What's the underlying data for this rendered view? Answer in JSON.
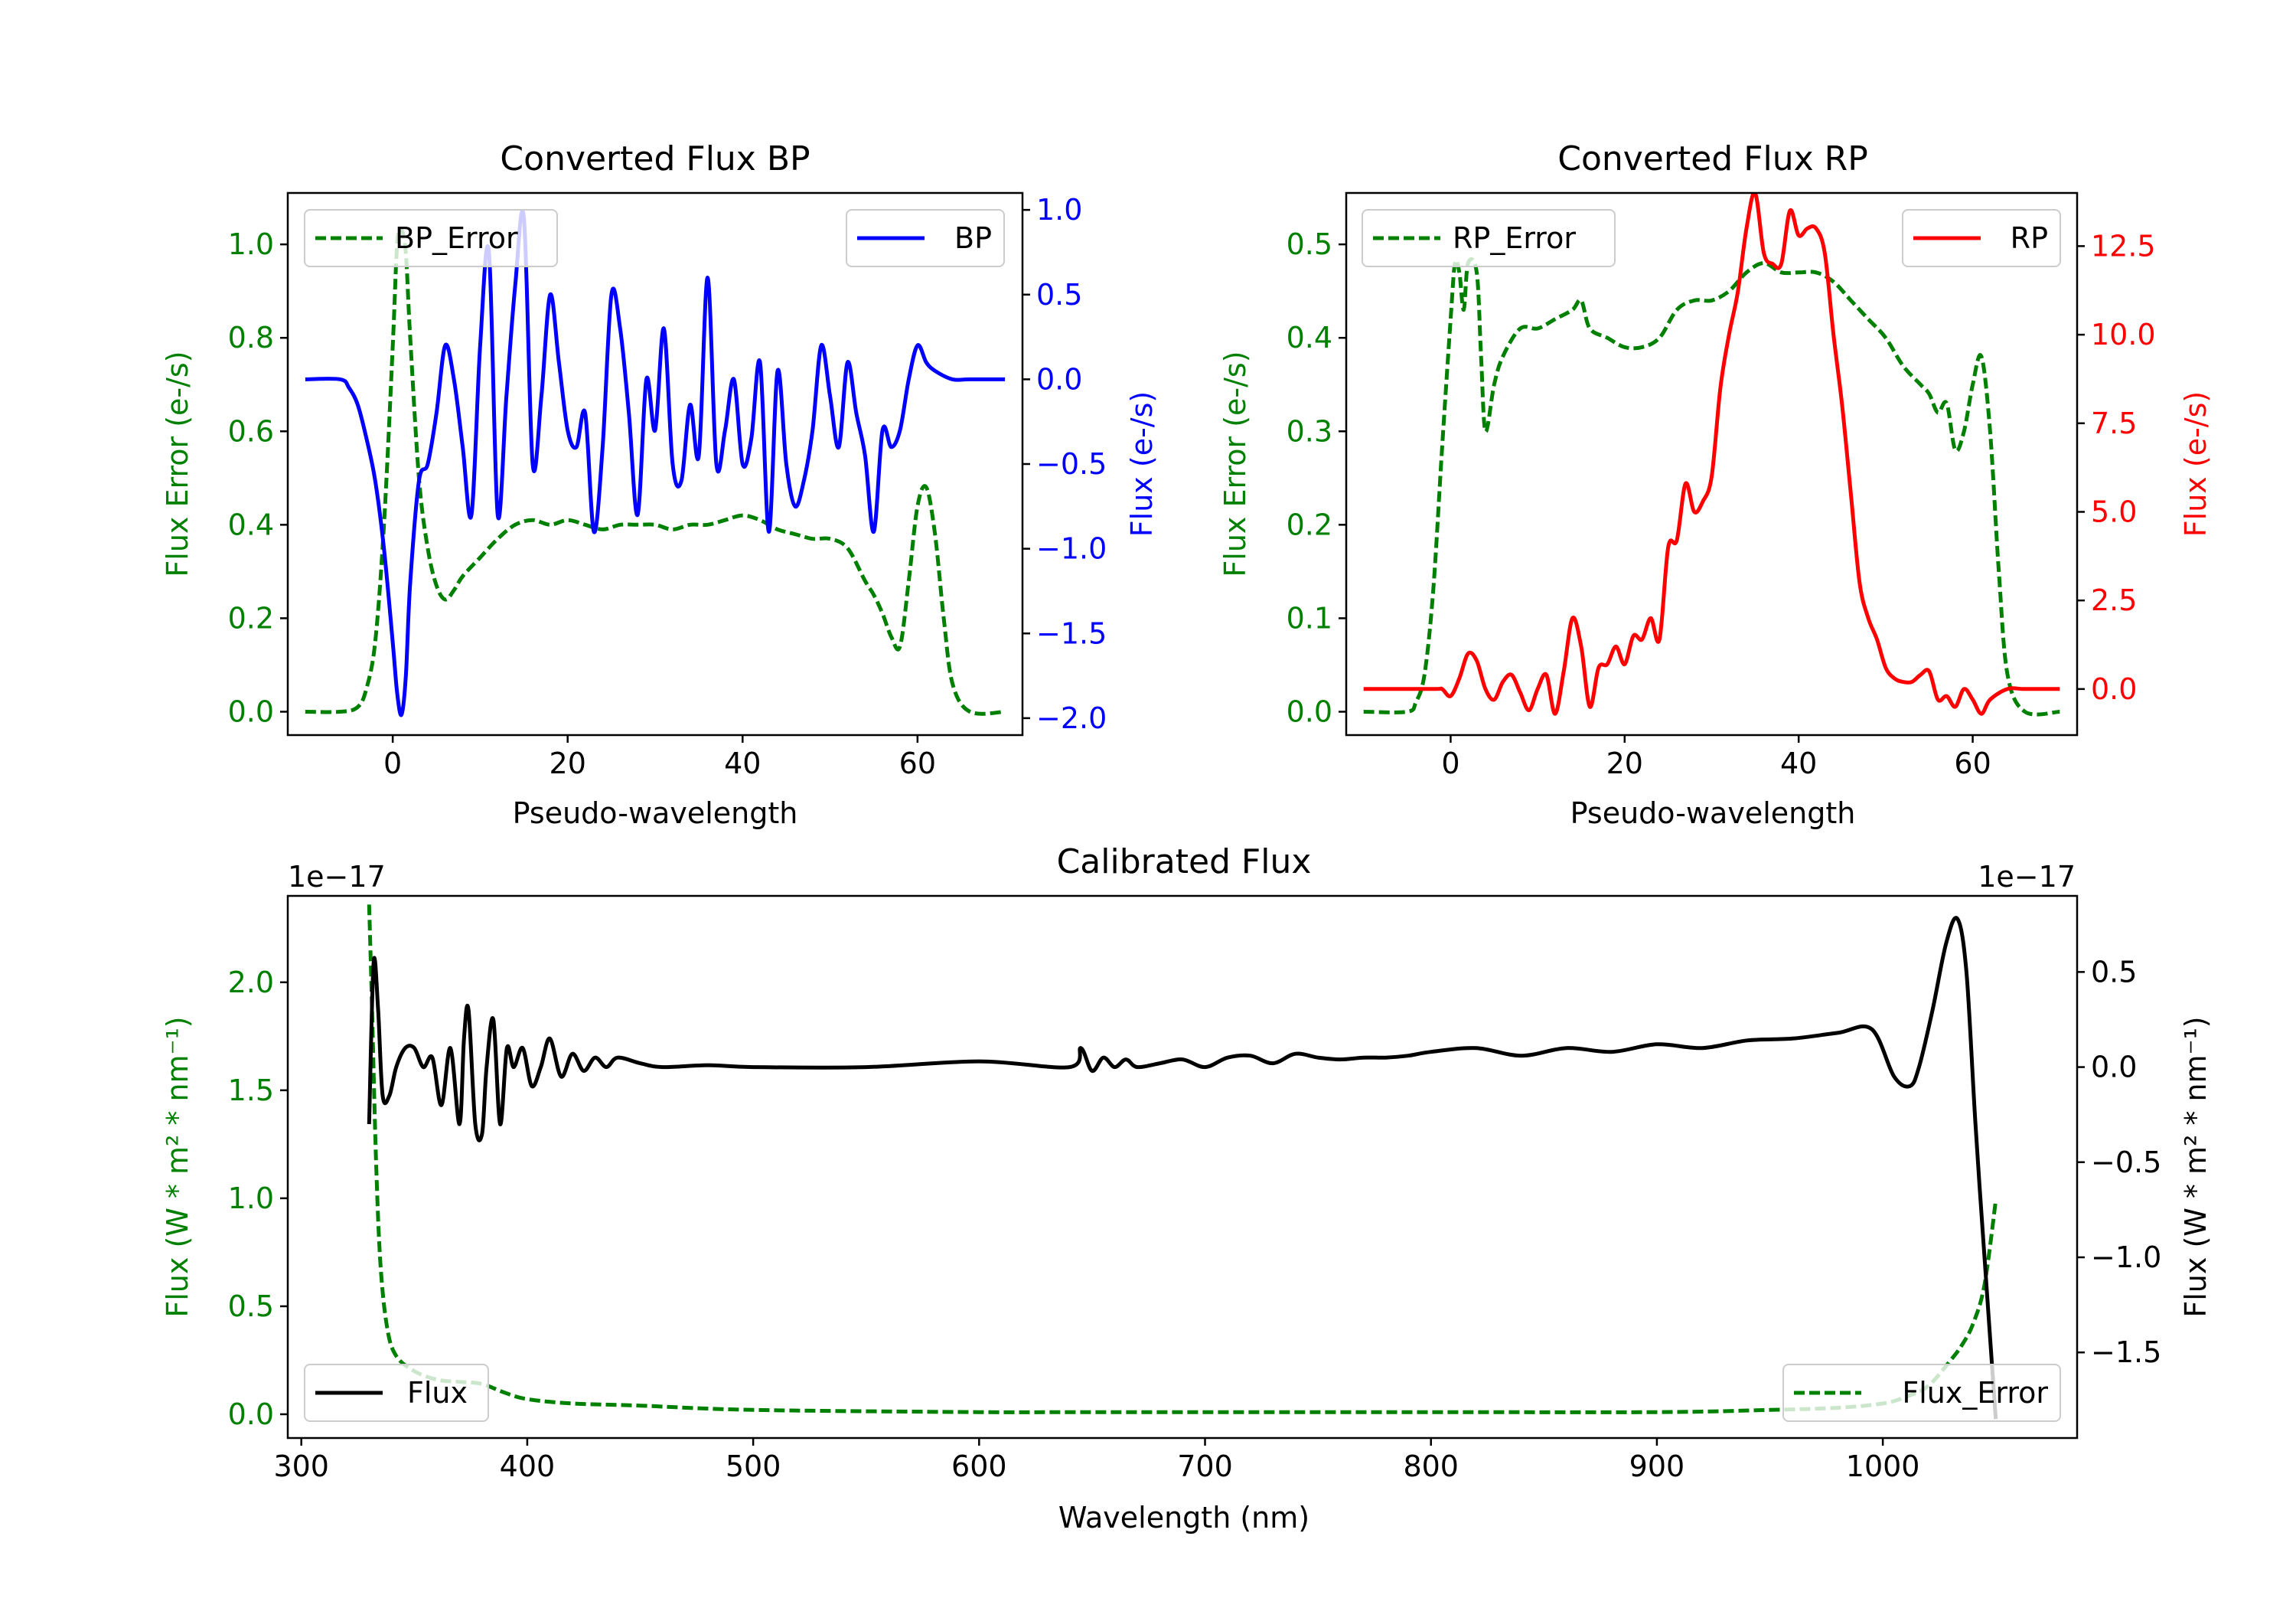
{
  "colors": {
    "green": "#008000",
    "blue": "#0000ff",
    "red": "#ff0000",
    "black": "#000000",
    "frame": "#000000"
  },
  "chart_data": [
    {
      "id": "bp",
      "type": "line",
      "title": "Converted Flux BP",
      "xlabel": "Pseudo-wavelength",
      "ylabel_left": "Flux Error (e-/s)",
      "ylabel_right": "Flux (e-/s)",
      "xlim": [
        -12,
        72
      ],
      "ylim_left": [
        -0.05,
        1.11
      ],
      "ylim_right": [
        -2.1,
        1.1
      ],
      "xticks": [
        0,
        20,
        40,
        60
      ],
      "xtick_labels": [
        "0",
        "20",
        "40",
        "60"
      ],
      "yticks_left": [
        0.0,
        0.2,
        0.4,
        0.6,
        0.8,
        1.0
      ],
      "ytick_labels_left": [
        "0.0",
        "0.2",
        "0.4",
        "0.6",
        "0.8",
        "1.0"
      ],
      "yticks_right": [
        -2.0,
        -1.5,
        -1.0,
        -0.5,
        0.0,
        0.5,
        1.0
      ],
      "ytick_labels_right": [
        "−2.0",
        "−1.5",
        "−1.0",
        "−0.5",
        "0.0",
        "0.5",
        "1.0"
      ],
      "legend_left": {
        "label": "BP_Error",
        "style": "dashed",
        "color": "green",
        "position": "upper left"
      },
      "legend_right": {
        "label": "BP",
        "style": "solid",
        "color": "blue",
        "position": "upper right"
      },
      "series": [
        {
          "name": "BP_Error",
          "axis": "left",
          "color": "green",
          "style": "dashed",
          "x": [
            -10,
            -6,
            -4,
            -3,
            -2,
            -1,
            0,
            0.5,
            1,
            1.5,
            2,
            3,
            4,
            5,
            6,
            7,
            8,
            10,
            12,
            14,
            16,
            18,
            20,
            22,
            24,
            26,
            28,
            30,
            32,
            34,
            36,
            38,
            40,
            42,
            44,
            46,
            48,
            50,
            52,
            54,
            55,
            56,
            57,
            58,
            59,
            60,
            61,
            62,
            63,
            64,
            66,
            70
          ],
          "y": [
            0,
            0,
            0.01,
            0.05,
            0.15,
            0.4,
            0.78,
            1.0,
            1.03,
            0.98,
            0.8,
            0.5,
            0.35,
            0.27,
            0.24,
            0.26,
            0.29,
            0.33,
            0.37,
            0.4,
            0.41,
            0.4,
            0.41,
            0.4,
            0.39,
            0.4,
            0.4,
            0.4,
            0.39,
            0.4,
            0.4,
            0.41,
            0.42,
            0.41,
            0.39,
            0.38,
            0.37,
            0.37,
            0.35,
            0.28,
            0.25,
            0.21,
            0.16,
            0.14,
            0.28,
            0.44,
            0.48,
            0.38,
            0.2,
            0.06,
            0.0,
            0.0
          ]
        },
        {
          "name": "BP",
          "axis": "right",
          "color": "blue",
          "style": "solid",
          "x": [
            -10,
            -6,
            -5,
            -4,
            -3,
            -2,
            -1,
            0,
            0.5,
            1,
            1.5,
            2,
            3,
            4,
            5,
            6,
            7,
            8,
            9,
            10,
            11,
            12,
            13,
            14,
            15,
            16,
            17,
            18,
            19,
            20,
            21,
            22,
            23,
            24,
            25,
            26,
            27,
            28,
            29,
            30,
            31,
            32,
            33,
            34,
            35,
            36,
            37,
            38,
            39,
            40,
            41,
            42,
            43,
            44,
            45,
            46,
            47,
            48,
            49,
            50,
            51,
            52,
            53,
            54,
            55,
            56,
            57,
            58,
            59,
            60,
            61,
            62,
            64,
            66,
            70
          ],
          "y": [
            0,
            0,
            -0.05,
            -0.15,
            -0.35,
            -0.6,
            -1.0,
            -1.55,
            -1.85,
            -1.98,
            -1.75,
            -1.2,
            -0.6,
            -0.5,
            -0.2,
            0.2,
            0.0,
            -0.4,
            -0.8,
            0.2,
            0.75,
            -0.8,
            -0.1,
            0.55,
            0.95,
            -0.5,
            -0.1,
            0.5,
            0.1,
            -0.3,
            -0.4,
            -0.2,
            -0.9,
            -0.4,
            0.5,
            0.3,
            -0.2,
            -0.8,
            0.0,
            -0.3,
            0.3,
            -0.5,
            -0.6,
            -0.15,
            -0.45,
            0.6,
            -0.5,
            -0.3,
            0.0,
            -0.5,
            -0.35,
            0.1,
            -0.9,
            0.05,
            -0.5,
            -0.75,
            -0.6,
            -0.3,
            0.2,
            -0.1,
            -0.4,
            0.1,
            -0.2,
            -0.45,
            -0.9,
            -0.3,
            -0.4,
            -0.3,
            0.0,
            0.2,
            0.1,
            0.05,
            0.0,
            0.0,
            0.0
          ]
        }
      ]
    },
    {
      "id": "rp",
      "type": "line",
      "title": "Converted Flux RP",
      "xlabel": "Pseudo-wavelength",
      "ylabel_left": "Flux Error (e-/s)",
      "ylabel_right": "Flux (e-/s)",
      "xlim": [
        -12,
        72
      ],
      "ylim_left": [
        -0.025,
        0.555
      ],
      "ylim_right": [
        -1.3,
        14.0
      ],
      "xticks": [
        0,
        20,
        40,
        60
      ],
      "xtick_labels": [
        "0",
        "20",
        "40",
        "60"
      ],
      "yticks_left": [
        0.0,
        0.1,
        0.2,
        0.3,
        0.4,
        0.5
      ],
      "ytick_labels_left": [
        "0.0",
        "0.1",
        "0.2",
        "0.3",
        "0.4",
        "0.5"
      ],
      "yticks_right": [
        0.0,
        2.5,
        5.0,
        7.5,
        10.0,
        12.5
      ],
      "ytick_labels_right": [
        "0.0",
        "2.5",
        "5.0",
        "7.5",
        "10.0",
        "12.5"
      ],
      "legend_left": {
        "label": "RP_Error",
        "style": "dashed",
        "color": "green",
        "position": "upper left"
      },
      "legend_right": {
        "label": "RP",
        "style": "solid",
        "color": "red",
        "position": "upper right"
      },
      "series": [
        {
          "name": "RP_Error",
          "axis": "left",
          "color": "green",
          "style": "dashed",
          "x": [
            -10,
            -5,
            -4,
            -3,
            -2,
            -1,
            0,
            0.5,
            1,
            1.5,
            2,
            3,
            3.5,
            4,
            5,
            6,
            8,
            10,
            12,
            14,
            15,
            16,
            18,
            20,
            22,
            24,
            26,
            28,
            30,
            32,
            34,
            36,
            38,
            40,
            42,
            44,
            46,
            48,
            50,
            52,
            54,
            55,
            56,
            57,
            58,
            59,
            60,
            61,
            62,
            63,
            64,
            66,
            70
          ],
          "y": [
            0,
            0,
            0.01,
            0.04,
            0.13,
            0.28,
            0.42,
            0.48,
            0.47,
            0.43,
            0.48,
            0.47,
            0.38,
            0.3,
            0.35,
            0.38,
            0.41,
            0.41,
            0.42,
            0.43,
            0.44,
            0.41,
            0.4,
            0.39,
            0.39,
            0.4,
            0.43,
            0.44,
            0.44,
            0.45,
            0.47,
            0.48,
            0.47,
            0.47,
            0.47,
            0.46,
            0.44,
            0.42,
            0.4,
            0.37,
            0.35,
            0.34,
            0.32,
            0.33,
            0.28,
            0.3,
            0.35,
            0.38,
            0.3,
            0.15,
            0.04,
            0.0,
            0.0
          ]
        },
        {
          "name": "RP",
          "axis": "right",
          "color": "red",
          "style": "solid",
          "x": [
            -10,
            -2,
            -1,
            0,
            1,
            2,
            3,
            4,
            5,
            6,
            7,
            8,
            9,
            10,
            11,
            12,
            13,
            14,
            15,
            16,
            17,
            18,
            19,
            20,
            21,
            22,
            23,
            24,
            25,
            26,
            27,
            28,
            29,
            30,
            31,
            32,
            33,
            34,
            35,
            36,
            37,
            38,
            39,
            40,
            41,
            42,
            43,
            44,
            45,
            46,
            47,
            48,
            49,
            50,
            51,
            52,
            53,
            54,
            55,
            56,
            57,
            58,
            59,
            60,
            61,
            62,
            64,
            66,
            70
          ],
          "y": [
            0,
            0,
            0,
            -0.2,
            0.3,
            1.0,
            0.8,
            0.0,
            -0.3,
            0.2,
            0.4,
            -0.1,
            -0.6,
            0.0,
            0.4,
            -0.7,
            0.5,
            2.0,
            1.2,
            -0.5,
            0.6,
            0.7,
            1.2,
            0.7,
            1.5,
            1.4,
            2.0,
            1.4,
            4.0,
            4.2,
            5.8,
            5.0,
            5.3,
            6.0,
            8.5,
            10.0,
            11.2,
            13.0,
            14.0,
            12.3,
            12.0,
            12.0,
            13.5,
            12.8,
            13.0,
            13.0,
            12.3,
            10.0,
            8.0,
            5.5,
            3.0,
            2.0,
            1.4,
            0.6,
            0.3,
            0.2,
            0.2,
            0.4,
            0.5,
            -0.3,
            -0.2,
            -0.5,
            0.0,
            -0.3,
            -0.7,
            -0.3,
            0.0,
            0.0,
            0.0
          ]
        }
      ]
    },
    {
      "id": "cal",
      "type": "line",
      "title": "Calibrated Flux",
      "xlabel": "Wavelength (nm)",
      "ylabel_left": "Flux (W * m² * nm⁻¹)",
      "ylabel_right": "Flux (W * m² * nm⁻¹)",
      "offset_left": "1e−17",
      "offset_right": "1e−17",
      "xlim": [
        294,
        1086
      ],
      "ylim_left": [
        -0.11,
        2.4
      ],
      "ylim_right": [
        -1.95,
        0.9
      ],
      "xticks": [
        300,
        400,
        500,
        600,
        700,
        800,
        900,
        1000
      ],
      "xtick_labels": [
        "300",
        "400",
        "500",
        "600",
        "700",
        "800",
        "900",
        "1000"
      ],
      "yticks_left": [
        0.0,
        0.5,
        1.0,
        1.5,
        2.0
      ],
      "ytick_labels_left": [
        "0.0",
        "0.5",
        "1.0",
        "1.5",
        "2.0"
      ],
      "yticks_right": [
        -1.5,
        -1.0,
        -0.5,
        0.0,
        0.5
      ],
      "ytick_labels_right": [
        "−1.5",
        "−1.0",
        "−0.5",
        "0.0",
        "0.5"
      ],
      "legend_left": {
        "label": "Flux",
        "style": "solid",
        "color": "black",
        "position": "lower left"
      },
      "legend_right": {
        "label": "Flux_Error",
        "style": "dashed",
        "color": "green",
        "position": "lower right"
      },
      "series": [
        {
          "name": "Flux_Error",
          "axis": "left",
          "color": "green",
          "style": "dashed",
          "x": [
            330,
            331,
            333,
            335,
            338,
            342,
            350,
            360,
            370,
            380,
            390,
            400,
            420,
            450,
            500,
            600,
            640,
            700,
            800,
            900,
            950,
            980,
            1000,
            1010,
            1020,
            1030,
            1035,
            1040,
            1045,
            1050
          ],
          "y": [
            2.36,
            2.0,
            1.2,
            0.7,
            0.4,
            0.27,
            0.2,
            0.16,
            0.15,
            0.14,
            0.1,
            0.07,
            0.05,
            0.04,
            0.02,
            0.01,
            0.01,
            0.01,
            0.01,
            0.01,
            0.02,
            0.03,
            0.05,
            0.08,
            0.13,
            0.25,
            0.32,
            0.42,
            0.6,
            0.99
          ]
        },
        {
          "name": "Flux",
          "axis": "right",
          "color": "black",
          "style": "solid",
          "x": [
            330,
            332,
            334,
            336,
            339,
            342,
            346,
            350,
            354,
            358,
            362,
            366,
            370,
            372,
            374,
            377,
            380,
            382,
            385,
            388,
            391,
            394,
            398,
            402,
            406,
            410,
            415,
            420,
            425,
            430,
            435,
            440,
            450,
            460,
            480,
            500,
            550,
            600,
            640,
            645,
            650,
            655,
            660,
            665,
            670,
            680,
            690,
            700,
            710,
            720,
            730,
            740,
            750,
            760,
            770,
            780,
            790,
            800,
            820,
            840,
            860,
            880,
            900,
            920,
            940,
            960,
            980,
            995,
            1005,
            1012,
            1016,
            1022,
            1028,
            1033,
            1037,
            1041,
            1045,
            1050
          ],
          "y": [
            -0.3,
            0.55,
            0.3,
            -0.15,
            -0.15,
            0.0,
            0.1,
            0.1,
            0.0,
            0.05,
            -0.2,
            0.1,
            -0.3,
            0.15,
            0.3,
            -0.3,
            -0.35,
            0.0,
            0.25,
            -0.3,
            0.1,
            0.0,
            0.1,
            -0.1,
            0.0,
            0.15,
            -0.05,
            0.07,
            -0.02,
            0.05,
            0.0,
            0.05,
            0.02,
            0.0,
            0.01,
            0.0,
            0.0,
            0.03,
            0.0,
            0.1,
            -0.02,
            0.05,
            0.0,
            0.04,
            0.0,
            0.02,
            0.04,
            0.0,
            0.05,
            0.06,
            0.02,
            0.07,
            0.05,
            0.04,
            0.05,
            0.05,
            0.06,
            0.08,
            0.1,
            0.06,
            0.1,
            0.08,
            0.12,
            0.1,
            0.14,
            0.15,
            0.18,
            0.2,
            -0.05,
            -0.1,
            0.0,
            0.3,
            0.65,
            0.78,
            0.5,
            -0.3,
            -1.0,
            -1.85
          ]
        }
      ]
    }
  ]
}
